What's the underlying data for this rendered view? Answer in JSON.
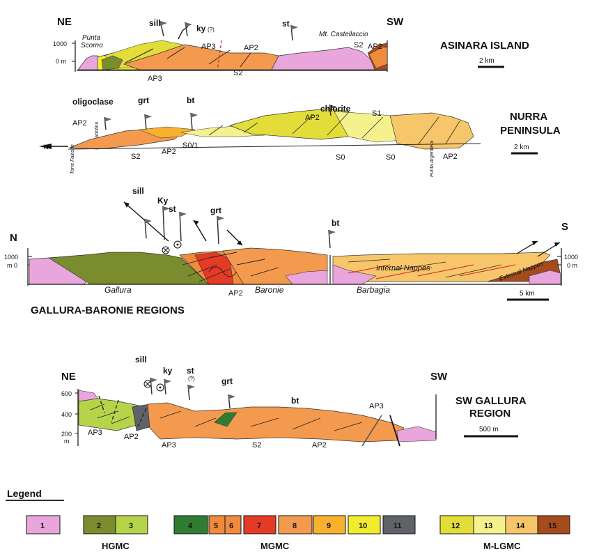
{
  "colors": {
    "u1": "#e8a6dc",
    "u2": "#7a8c2e",
    "u3": "#b6d44a",
    "u4": "#2f7d32",
    "u5": "#f08a3c",
    "u6": "#f08a3c",
    "u7": "#e43a26",
    "u8": "#f39a4e",
    "u9": "#f7b12e",
    "u10": "#f1ec2e",
    "u11": "#5f6368",
    "u12": "#e3dd3a",
    "u13": "#f5f28e",
    "u14": "#f8c66a",
    "u15": "#a54b1e"
  },
  "asinara": {
    "title": "ASINARA ISLAND",
    "ne": "NE",
    "sw": "SW",
    "punta": "Punta",
    "scorno": "Scorno",
    "castellaccio": "Mt. Castellaccio",
    "sill": "sill",
    "ky": "ky",
    "ky_q": "(?)",
    "st": "st",
    "ap3a": "AP3",
    "ap3b": "AP3",
    "ap2a": "AP2",
    "ap2b": "AP2",
    "s2a": "S2",
    "s2b": "S2",
    "y1000": "1000",
    "y0": "0 m",
    "scale": "2 km"
  },
  "nurra": {
    "title1": "NURRA",
    "title2": "PENINSULA",
    "oligoclase": "oligoclase",
    "grt": "grt",
    "bt": "bt",
    "chlorite": "chlorite",
    "ap2a": "AP2",
    "ap2b": "AP2",
    "ap2c": "AP2",
    "ap2d": "AP2",
    "s2": "S2",
    "s01": "S0/1",
    "s0a": "S0",
    "s0b": "S0",
    "s1": "S1",
    "torre": "Torre Falcone",
    "stintino": "Stintino",
    "argentiera": "Punta Argentiera",
    "scale": "2 km"
  },
  "gallura": {
    "title": "GALLURA-BARONIE REGIONS",
    "n": "N",
    "s": "S",
    "sill": "sill",
    "ky": "Ky",
    "st": "st",
    "grt": "grt",
    "bt": "bt",
    "gallura": "Gallura",
    "baronie": "Baronie",
    "barbagia": "Barbagia",
    "internal": "Internal Nappes",
    "external": "External Nappes",
    "ap2": "AP2",
    "y1000l": "1000",
    "y0l": "m 0",
    "y1000r": "1000",
    "y0r": "0 m",
    "scale": "5 km"
  },
  "swgallura": {
    "title1": "SW GALLURA",
    "title2": "REGION",
    "ne": "NE",
    "sw": "SW",
    "sill": "sill",
    "ky": "ky",
    "st": "st",
    "st_q": "(?)",
    "grt": "grt",
    "bt": "bt",
    "ap3a": "AP3",
    "ap2a": "AP2",
    "ap3b": "AP3",
    "s2": "S2",
    "ap2b": "AP2",
    "ap3c": "AP3",
    "y600": "600",
    "y400": "400",
    "y200": "200",
    "ym": "m",
    "scale": "500 m"
  },
  "legend": {
    "title": "Legend",
    "items": [
      "1",
      "2",
      "3",
      "4",
      "5",
      "6",
      "7",
      "8",
      "9",
      "10",
      "11",
      "12",
      "13",
      "14",
      "15"
    ],
    "groups": [
      "HGMC",
      "MGMC",
      "M-LGMC"
    ]
  }
}
